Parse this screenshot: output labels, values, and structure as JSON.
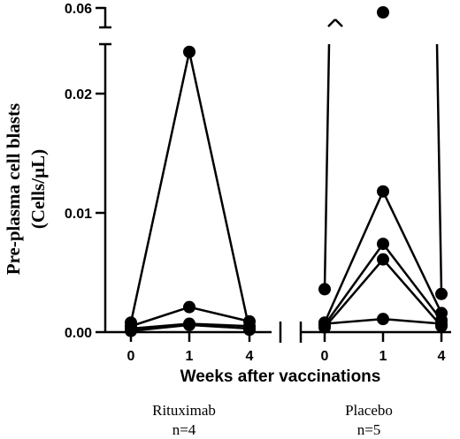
{
  "chart_data": {
    "type": "line",
    "title": "",
    "ylabel_line1": "Pre-plasma cell blasts",
    "ylabel_line2": "(Cells/µL)",
    "xlabel": "Weeks after vaccinations",
    "y_ticks": [
      "0.00",
      "0.01",
      "0.02",
      "0.06"
    ],
    "y_tick_values": [
      0,
      0.01,
      0.02,
      0.06
    ],
    "ylim_lower": [
      0,
      0.024
    ],
    "ylim_upper_break": 0.06,
    "line_color": "#000000",
    "groups": [
      {
        "label": "Rituximab",
        "n_label": "n=4",
        "x": [
          "0",
          "1",
          "4"
        ],
        "series": [
          {
            "values": [
              0.0008,
              0.0235,
              0.0002
            ]
          },
          {
            "values": [
              0.0005,
              0.0021,
              0.0009
            ]
          },
          {
            "values": [
              0.0003,
              0.0007,
              0.0005
            ]
          },
          {
            "values": [
              0.0001,
              0.0006,
              0.0003
            ]
          }
        ]
      },
      {
        "label": "Placebo",
        "n_label": "n=5",
        "x": [
          "0",
          "1",
          "4"
        ],
        "series": [
          {
            "values": [
              0.0036,
              0.06,
              0.0032
            ]
          },
          {
            "values": [
              0.0008,
              0.0118,
              0.0016
            ]
          },
          {
            "values": [
              0.0006,
              0.0074,
              0.001
            ]
          },
          {
            "values": [
              0.0004,
              0.0061,
              0.0005
            ]
          },
          {
            "values": [
              0.0007,
              0.0011,
              0.0007
            ]
          }
        ]
      }
    ]
  }
}
